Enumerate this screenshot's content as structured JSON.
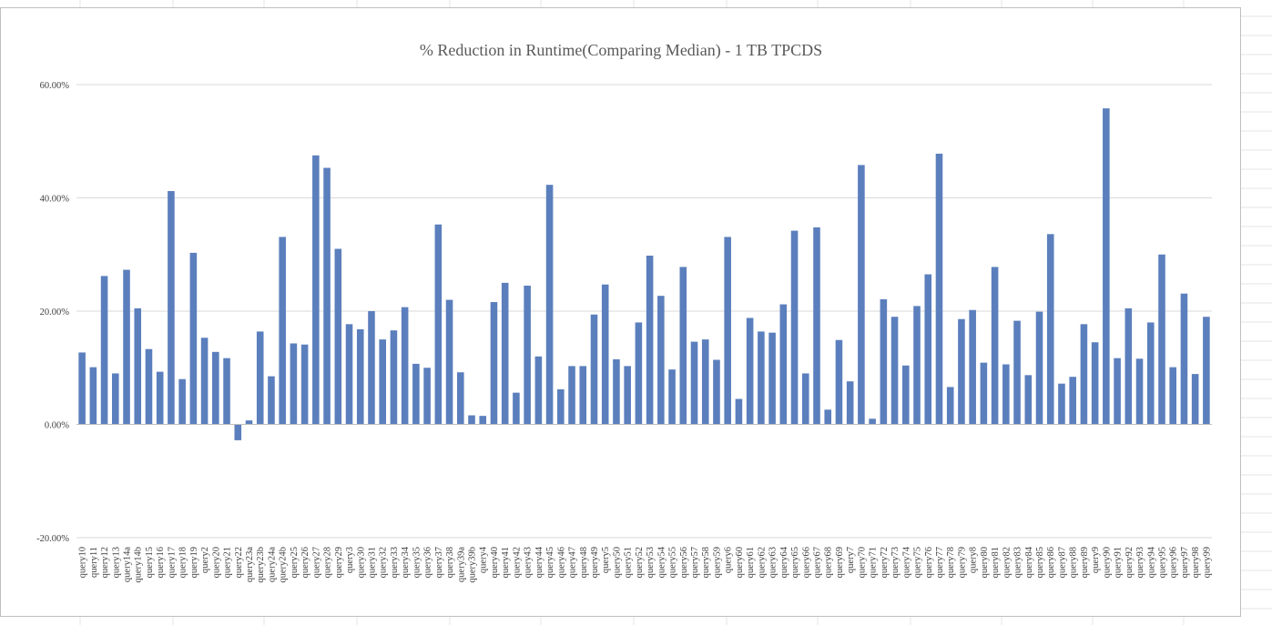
{
  "colors": {
    "bar": "#5b7fbd",
    "gridline": "#d9d9d9",
    "axis": "#bfbfbf",
    "sheet_grid": "#e4e4e4"
  },
  "chart_data": {
    "type": "bar",
    "title": "% Reduction in Runtime(Comparing Median) - 1 TB TPCDS",
    "xlabel": "",
    "ylabel": "",
    "ylim": [
      -0.2,
      0.6
    ],
    "yticks": [
      {
        "value": 0.6,
        "label": "60.00%"
      },
      {
        "value": 0.4,
        "label": "40.00%"
      },
      {
        "value": 0.2,
        "label": "20.00%"
      },
      {
        "value": 0.0,
        "label": "0.00%"
      },
      {
        "value": -0.2,
        "label": "-20.00%"
      }
    ],
    "grid": true,
    "legend": "none",
    "categories": [
      "query10",
      "query11",
      "query12",
      "query13",
      "query14a",
      "query14b",
      "query15",
      "query16",
      "query17",
      "query18",
      "query19",
      "query2",
      "query20",
      "query21",
      "query22",
      "query23a",
      "query23b",
      "query24a",
      "query24b",
      "query25",
      "query26",
      "query27",
      "query28",
      "query29",
      "query3",
      "query30",
      "query31",
      "query32",
      "query33",
      "query34",
      "query35",
      "query36",
      "query37",
      "query38",
      "query39a",
      "query39b",
      "query4",
      "query40",
      "query41",
      "query42",
      "query43",
      "query44",
      "query45",
      "query46",
      "query47",
      "query48",
      "query49",
      "query5",
      "query50",
      "query51",
      "query52",
      "query53",
      "query54",
      "query55",
      "query56",
      "query57",
      "query58",
      "query59",
      "query6",
      "query60",
      "query61",
      "query62",
      "query63",
      "query64",
      "query65",
      "query66",
      "query67",
      "query68",
      "query69",
      "query7",
      "query70",
      "query71",
      "query72",
      "query73",
      "query74",
      "query75",
      "query76",
      "query77",
      "query78",
      "query79",
      "query8",
      "query80",
      "query81",
      "query82",
      "query83",
      "query84",
      "query85",
      "query86",
      "query87",
      "query88",
      "query89",
      "query9",
      "query90",
      "query91",
      "query92",
      "query93",
      "query94",
      "query95",
      "query96",
      "query97",
      "query98",
      "query99"
    ],
    "values": [
      0.127,
      0.101,
      0.262,
      0.09,
      0.273,
      0.205,
      0.133,
      0.093,
      0.412,
      0.08,
      0.303,
      0.153,
      0.128,
      0.117,
      -0.028,
      0.007,
      0.164,
      0.085,
      0.331,
      0.143,
      0.141,
      0.475,
      0.453,
      0.31,
      0.177,
      0.168,
      0.2,
      0.15,
      0.166,
      0.207,
      0.107,
      0.1,
      0.353,
      0.22,
      0.092,
      0.016,
      0.015,
      0.216,
      0.25,
      0.056,
      0.245,
      0.12,
      0.423,
      0.062,
      0.103,
      0.103,
      0.194,
      0.247,
      0.115,
      0.103,
      0.18,
      0.298,
      0.227,
      0.097,
      0.278,
      0.146,
      0.15,
      0.114,
      0.331,
      0.045,
      0.188,
      0.164,
      0.162,
      0.212,
      0.342,
      0.09,
      0.348,
      0.026,
      0.149,
      0.076,
      0.458,
      0.01,
      0.221,
      0.19,
      0.104,
      0.209,
      0.265,
      0.478,
      0.066,
      0.186,
      0.202,
      0.109,
      0.278,
      0.106,
      0.183,
      0.087,
      0.199,
      0.336,
      0.072,
      0.084,
      0.177,
      0.145,
      0.558,
      0.117,
      0.205,
      0.116,
      0.18,
      0.3,
      0.101,
      0.231,
      0.089,
      0.19
    ]
  }
}
